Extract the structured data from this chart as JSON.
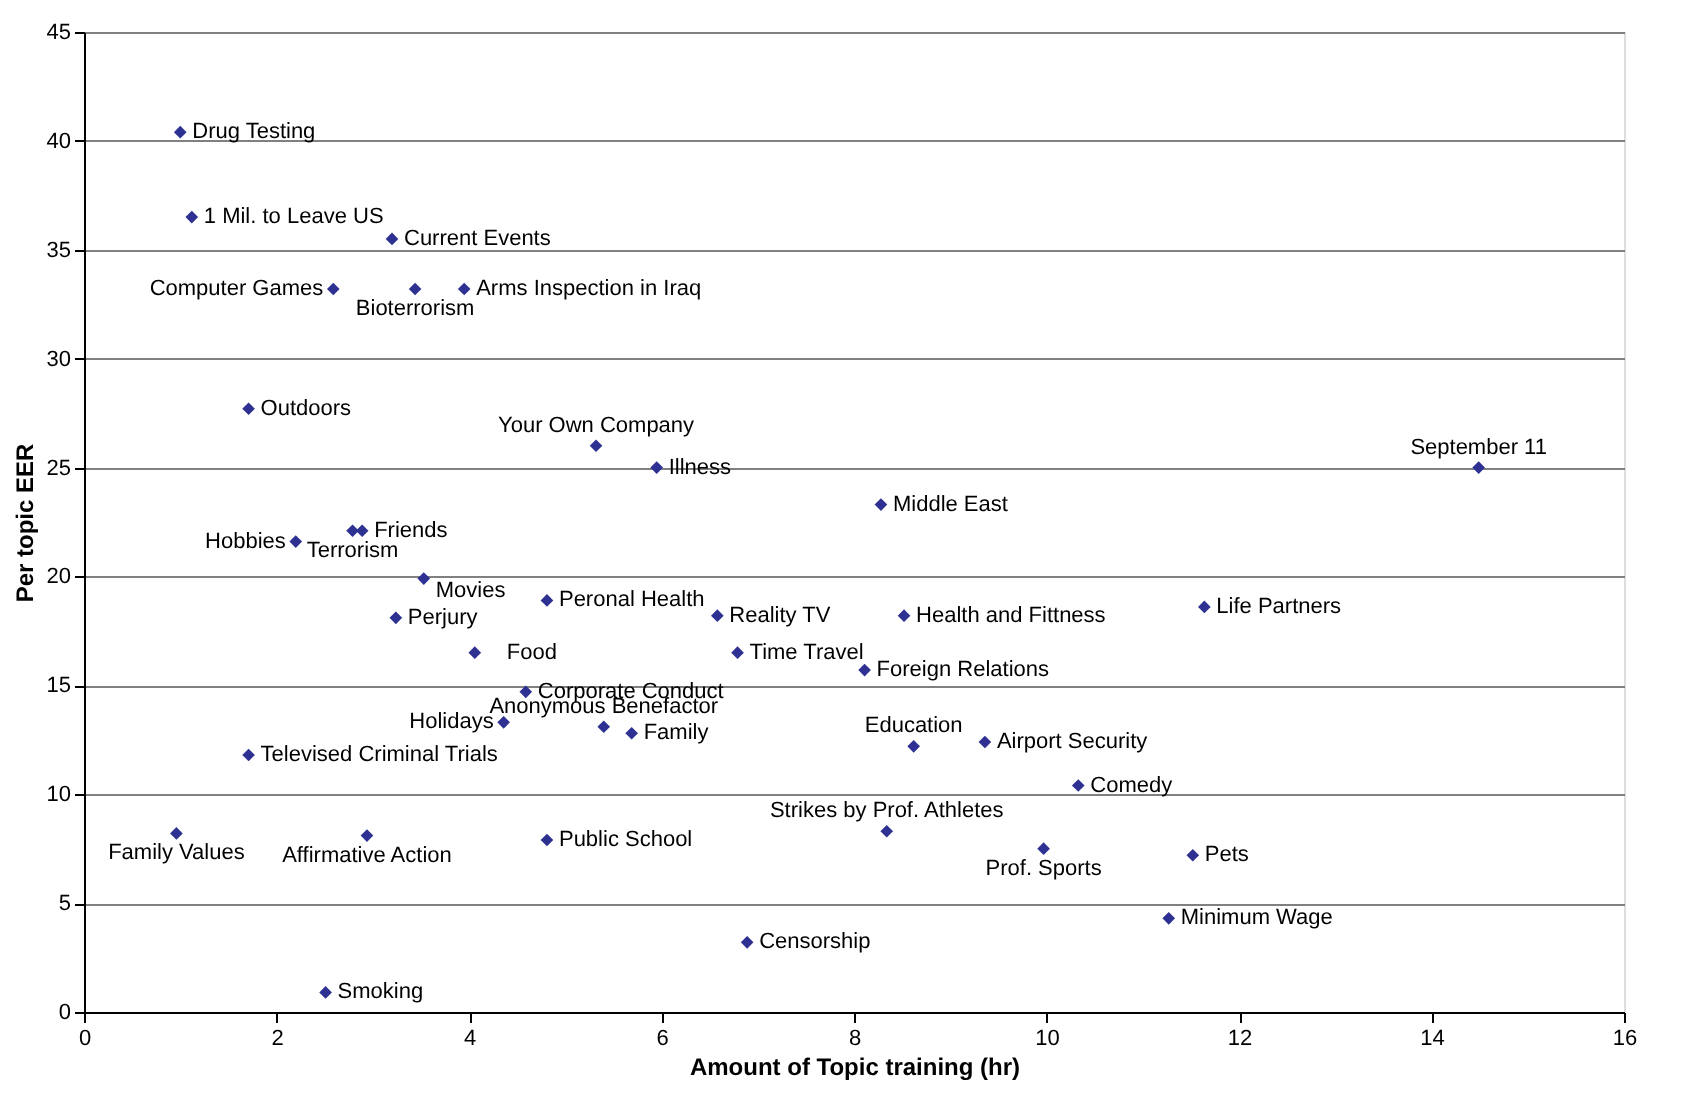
{
  "chart_data": {
    "type": "scatter",
    "xlabel": "Amount of Topic training (hr)",
    "ylabel": "Per topic EER",
    "x": [
      1.0,
      1.12,
      3.2,
      2.59,
      3.44,
      3.95,
      1.71,
      5.32,
      5.95,
      14.49,
      8.28,
      2.89,
      2.79,
      2.2,
      3.53,
      4.81,
      11.64,
      6.58,
      8.52,
      3.24,
      4.06,
      6.79,
      8.11,
      4.59,
      4.36,
      5.4,
      5.69,
      8.62,
      9.36,
      1.71,
      10.33,
      0.96,
      2.94,
      4.81,
      8.34,
      9.97,
      11.52,
      11.27,
      6.89,
      2.51
    ],
    "values": [
      40.4,
      36.5,
      35.5,
      33.2,
      33.2,
      33.2,
      27.7,
      26.0,
      25.0,
      25.0,
      23.3,
      22.1,
      22.1,
      21.6,
      19.9,
      18.9,
      18.6,
      18.2,
      18.2,
      18.1,
      16.5,
      16.5,
      15.7,
      14.7,
      13.3,
      13.1,
      12.8,
      12.2,
      12.4,
      11.8,
      10.4,
      8.2,
      8.1,
      7.9,
      8.3,
      7.5,
      7.2,
      4.3,
      3.2,
      0.9
    ],
    "color": "#2e3192",
    "marker": "diamond",
    "annotations": [
      {
        "text": "Drug Testing",
        "x": 1.0,
        "y": 40.4
      },
      {
        "text": "1 Mil. to Leave US",
        "x": 1.12,
        "y": 36.5
      },
      {
        "text": "Current Events",
        "x": 3.2,
        "y": 35.5
      },
      {
        "text": "Computer Games",
        "x": 2.59,
        "y": 33.2
      },
      {
        "text": "Bioterrorism",
        "x": 3.44,
        "y": 33.2
      },
      {
        "text": "Arms Inspection in Iraq",
        "x": 3.95,
        "y": 33.2
      },
      {
        "text": "Outdoors",
        "x": 1.71,
        "y": 27.7
      },
      {
        "text": "Your Own Company",
        "x": 5.32,
        "y": 26.0
      },
      {
        "text": "Illness",
        "x": 5.95,
        "y": 25.0
      },
      {
        "text": "September 11",
        "x": 14.49,
        "y": 25.0
      },
      {
        "text": "Middle East",
        "x": 8.28,
        "y": 23.3
      },
      {
        "text": "Friends",
        "x": 2.89,
        "y": 22.1
      },
      {
        "text": "Terrorism",
        "x": 2.79,
        "y": 22.1
      },
      {
        "text": "Hobbies",
        "x": 2.2,
        "y": 21.6
      },
      {
        "text": "Movies",
        "x": 3.53,
        "y": 19.9
      },
      {
        "text": "Peronal Health",
        "x": 4.81,
        "y": 18.9
      },
      {
        "text": "Life Partners",
        "x": 11.64,
        "y": 18.6
      },
      {
        "text": "Reality TV",
        "x": 6.58,
        "y": 18.2
      },
      {
        "text": "Health and Fittness",
        "x": 8.52,
        "y": 18.2
      },
      {
        "text": "Perjury",
        "x": 3.24,
        "y": 18.1
      },
      {
        "text": "Food",
        "x": 4.06,
        "y": 16.5
      },
      {
        "text": "Time Travel",
        "x": 6.79,
        "y": 16.5
      },
      {
        "text": "Foreign Relations",
        "x": 8.11,
        "y": 15.7
      },
      {
        "text": "Corporate Conduct",
        "x": 4.59,
        "y": 14.7
      },
      {
        "text": "Holidays",
        "x": 4.36,
        "y": 13.3
      },
      {
        "text": "Anonymous Benefactor",
        "x": 5.4,
        "y": 13.1
      },
      {
        "text": "Family",
        "x": 5.69,
        "y": 12.8
      },
      {
        "text": "Education",
        "x": 8.62,
        "y": 12.2
      },
      {
        "text": "Airport Security",
        "x": 9.36,
        "y": 12.4
      },
      {
        "text": "Televised Criminal Trials",
        "x": 1.71,
        "y": 11.8
      },
      {
        "text": "Comedy",
        "x": 10.33,
        "y": 10.4
      },
      {
        "text": "Family Values",
        "x": 0.96,
        "y": 8.2
      },
      {
        "text": "Affirmative Action",
        "x": 2.94,
        "y": 8.1
      },
      {
        "text": "Public School",
        "x": 4.81,
        "y": 7.9
      },
      {
        "text": "Strikes by Prof. Athletes",
        "x": 8.34,
        "y": 8.3
      },
      {
        "text": "Prof. Sports",
        "x": 9.97,
        "y": 7.5
      },
      {
        "text": "Pets",
        "x": 11.52,
        "y": 7.2
      },
      {
        "text": "Minimum Wage",
        "x": 11.27,
        "y": 4.3
      },
      {
        "text": "Censorship",
        "x": 6.89,
        "y": 3.2
      },
      {
        "text": "Smoking",
        "x": 2.51,
        "y": 0.9
      }
    ],
    "xlim": [
      0,
      16
    ],
    "xticks": [
      0,
      2,
      4,
      6,
      8,
      10,
      12,
      14,
      16
    ],
    "ylim": [
      0,
      45
    ],
    "yticks": [
      0,
      5,
      10,
      15,
      20,
      25,
      30,
      35,
      40,
      45
    ],
    "grid": "y"
  }
}
